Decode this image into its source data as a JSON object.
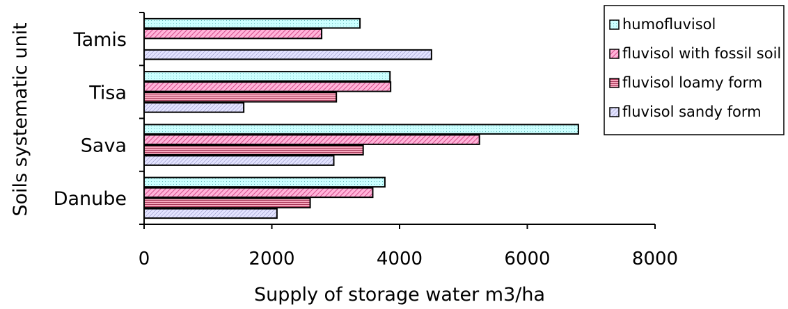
{
  "chart_data": {
    "type": "bar",
    "orientation": "horizontal",
    "title": "",
    "xlabel": "Supply of storage water m3/ha",
    "ylabel": "Soils systematic unit",
    "categories": [
      "Tamis",
      "Tisa",
      "Sava",
      "Danube"
    ],
    "xlim": [
      0,
      8000
    ],
    "xticks": [
      "0",
      "2000",
      "4000",
      "6000",
      "8000"
    ],
    "grid": false,
    "legend_position": "top-right",
    "series": [
      {
        "name": "humofluvisol",
        "values": [
          3380,
          3850,
          6800,
          3770
        ],
        "color": "#ccffff",
        "pattern": "dots"
      },
      {
        "name": "fluvisol with fossil soil",
        "values": [
          2780,
          3860,
          5250,
          3580
        ],
        "color": "#ff99cc",
        "pattern": "diagonal"
      },
      {
        "name": "fluvisol loamy form",
        "values": [
          null,
          3010,
          3430,
          2600
        ],
        "color": "#e06c8c",
        "pattern": "horizontal"
      },
      {
        "name": "fluvisol sandy form",
        "values": [
          4500,
          1560,
          2970,
          2080
        ],
        "color": "#ccccff",
        "pattern": "diagonal"
      }
    ]
  }
}
